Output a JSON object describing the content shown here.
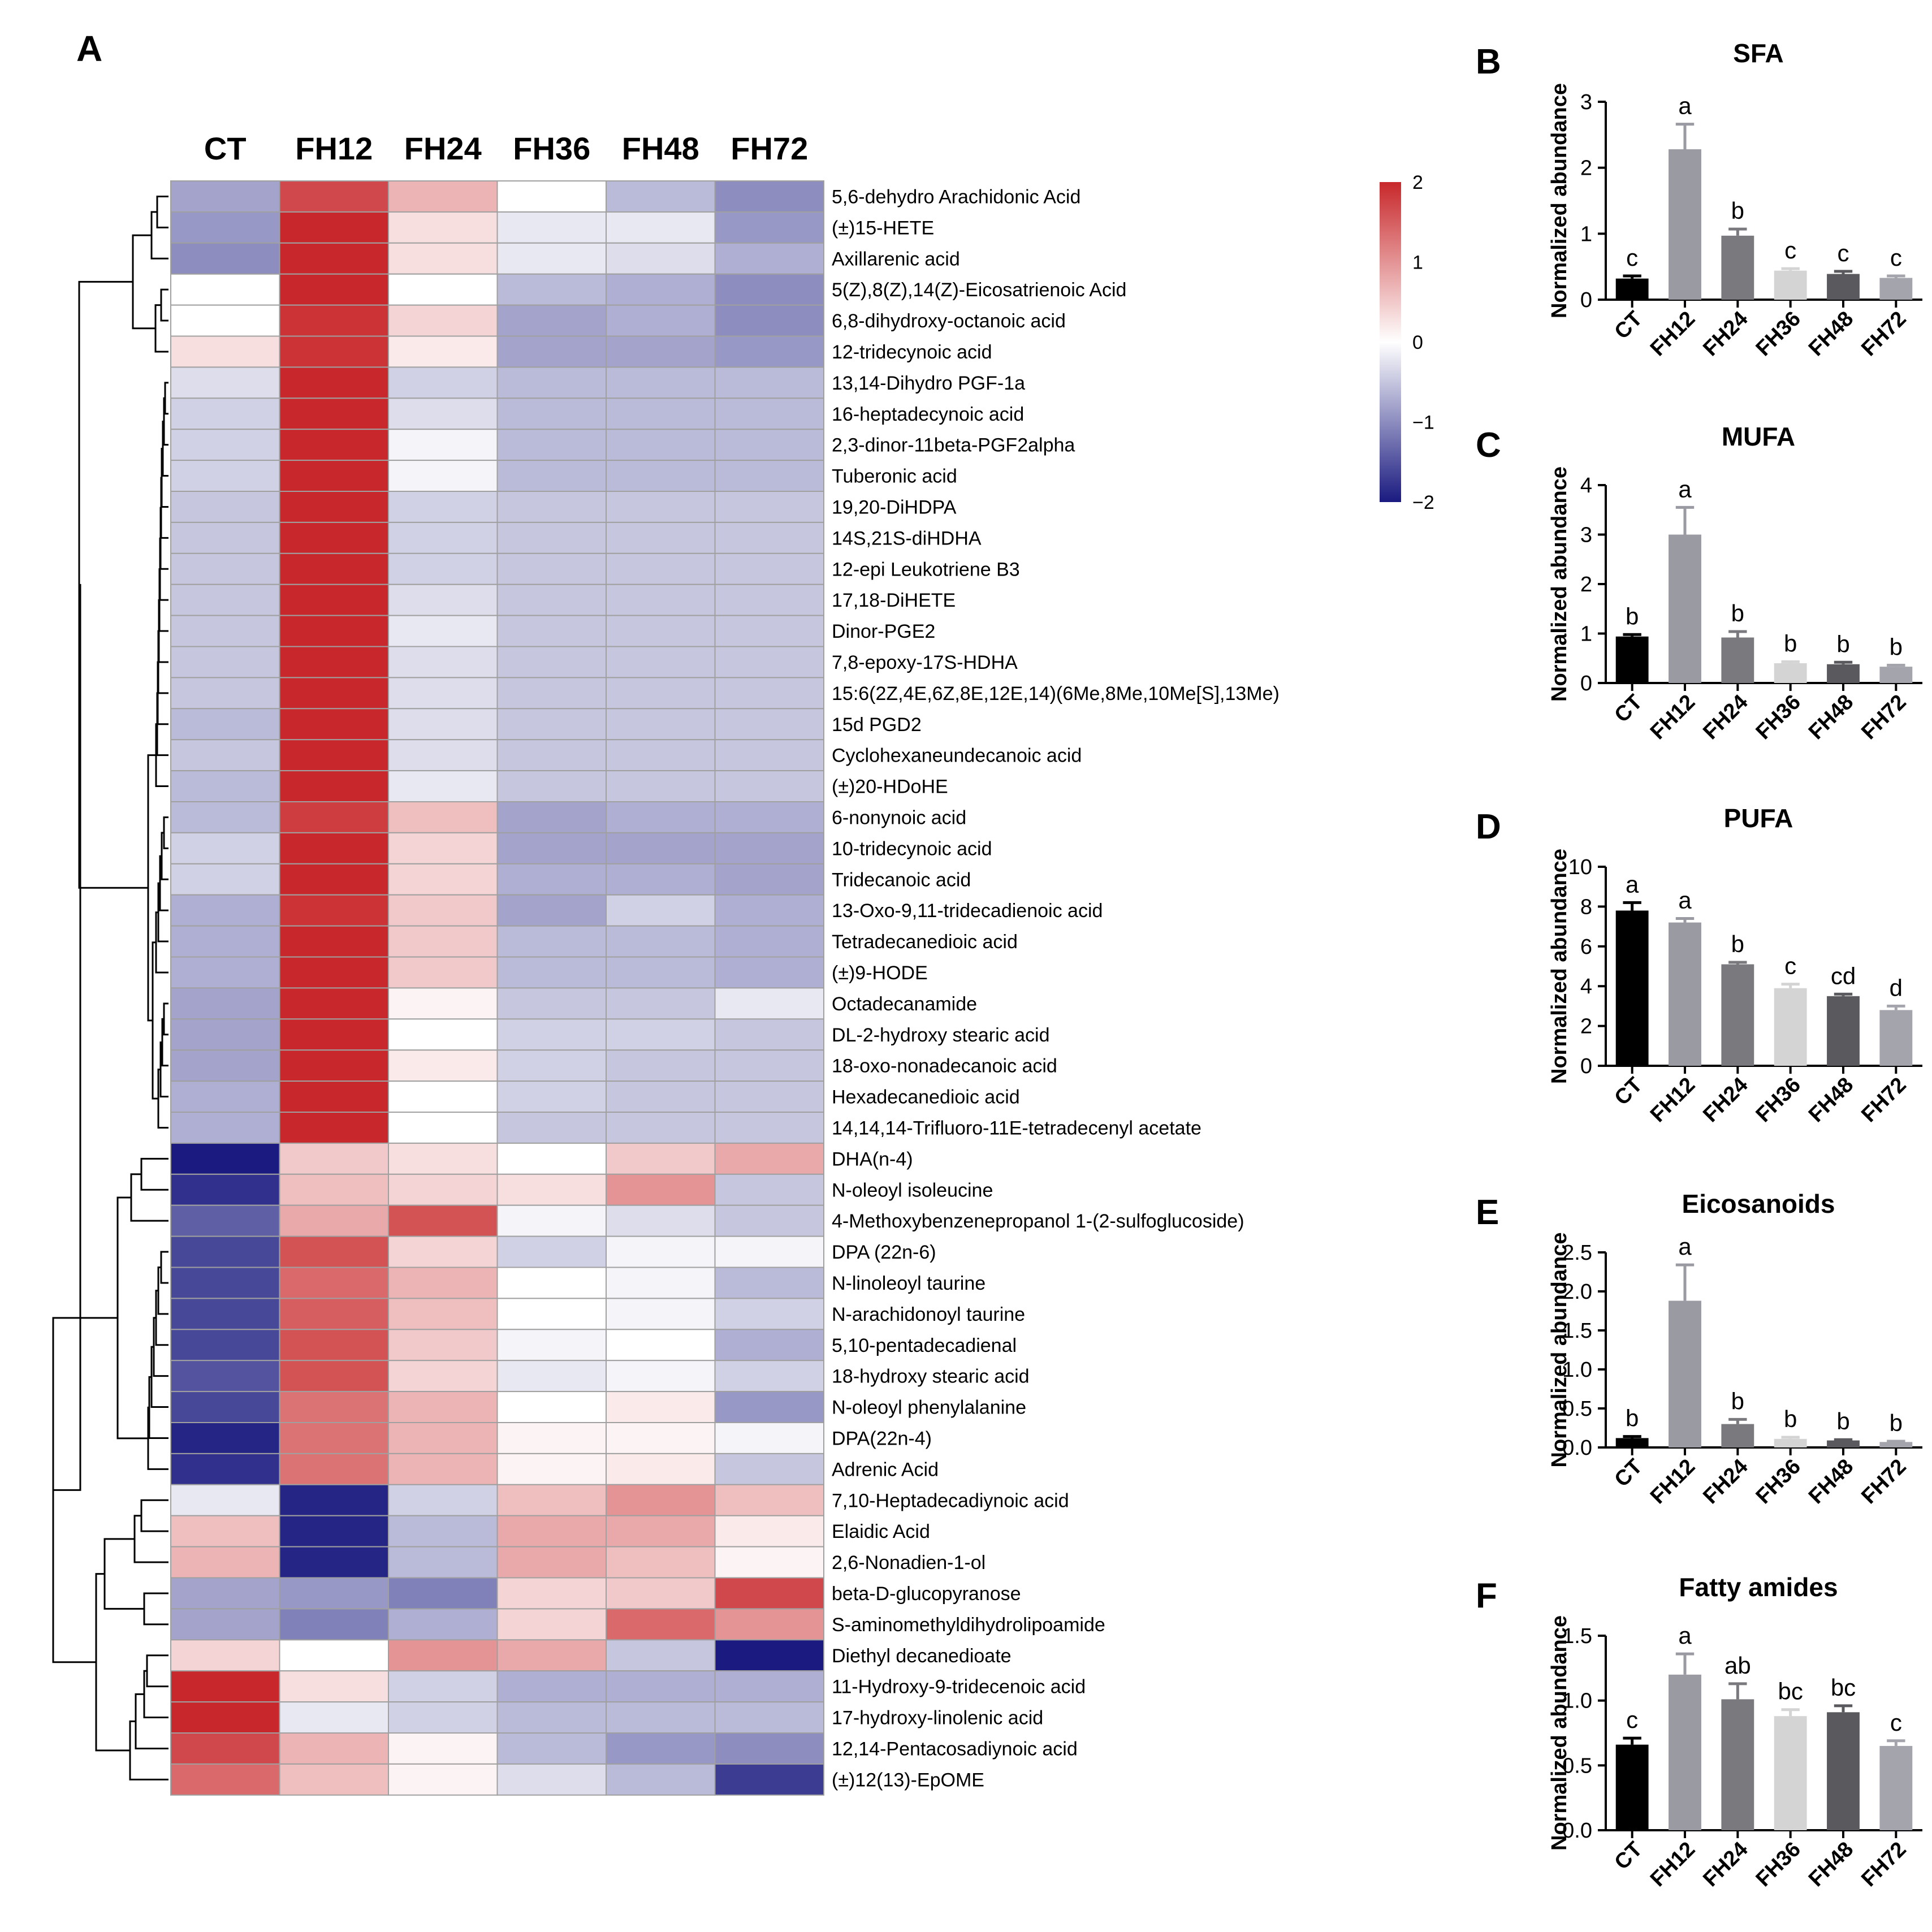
{
  "colors": {
    "high": "#c8282b",
    "mid": "#ffffff",
    "low": "#1a1a80",
    "grid": "#a0a0a0"
  },
  "chart_data": [
    {
      "panel": "A",
      "type": "heatmap",
      "columns": [
        "CT",
        "FH12",
        "FH24",
        "FH36",
        "FH48",
        "FH72"
      ],
      "rows": [
        "5,6-dehydro Arachidonic Acid",
        "(±)15-HETE",
        "Axillarenic acid",
        "5(Z),8(Z),14(Z)-Eicosatrienoic Acid",
        "6,8-dihydroxy-octanoic acid",
        "12-tridecynoic acid",
        "13,14-Dihydro PGF-1a",
        "16-heptadecynoic acid",
        "2,3-dinor-11beta-PGF2alpha",
        "Tuberonic acid",
        "19,20-DiHDPA",
        "14S,21S-diHDHA",
        "12-epi Leukotriene B3",
        "17,18-DiHETE",
        "Dinor-PGE2",
        "7,8-epoxy-17S-HDHA",
        "15:6(2Z,4E,6Z,8E,12E,14)(6Me,8Me,10Me[S],13Me)",
        "15d PGD2",
        "Cyclohexaneundecanoic acid",
        "(±)20-HDoHE",
        "6-nonynoic acid",
        "10-tridecynoic acid",
        "Tridecanoic acid",
        "13-Oxo-9,11-tridecadienoic acid",
        "Tetradecanedioic acid",
        "(±)9-HODE",
        "Octadecanamide",
        "DL-2-hydroxy stearic acid",
        "18-oxo-nonadecanoic acid",
        "Hexadecanedioic acid",
        "14,14,14-Trifluoro-11E-tetradecenyl acetate",
        "DHA(n-4)",
        "N-oleoyl isoleucine",
        "4-Methoxybenzenepropanol 1-(2-sulfoglucoside)",
        "DPA (22n-6)",
        "N-linoleoyl taurine",
        "N-arachidonoyl taurine",
        "5,10-pentadecadienal",
        "18-hydroxy stearic acid",
        "N-oleoyl phenylalanine",
        "DPA(22n-4)",
        "Adrenic Acid",
        "7,10-Heptadecadiynoic acid",
        "Elaidic Acid",
        "2,6-Nonadien-1-ol",
        "beta-D-glucopyranose",
        "S-aminomethyldihydrolipoamide",
        "Diethyl decanedioate",
        "11-Hydroxy-9-tridecenoic acid",
        "17-hydroxy-linolenic acid",
        "12,14-Pentacosadiynoic acid",
        "(±)12(13)-EpOME"
      ],
      "values": [
        [
          -0.8,
          1.7,
          0.7,
          0.0,
          -0.6,
          -1.0
        ],
        [
          -0.9,
          2.0,
          0.3,
          -0.2,
          -0.2,
          -0.9
        ],
        [
          -1.0,
          2.0,
          0.3,
          -0.2,
          -0.3,
          -0.7
        ],
        [
          0.0,
          2.0,
          0.0,
          -0.6,
          -0.7,
          -1.0
        ],
        [
          0.0,
          1.9,
          0.4,
          -0.8,
          -0.7,
          -1.0
        ],
        [
          0.3,
          1.9,
          0.2,
          -0.8,
          -0.8,
          -0.9
        ],
        [
          -0.3,
          2.0,
          -0.4,
          -0.6,
          -0.6,
          -0.6
        ],
        [
          -0.4,
          2.0,
          -0.3,
          -0.6,
          -0.6,
          -0.6
        ],
        [
          -0.4,
          2.0,
          -0.1,
          -0.6,
          -0.6,
          -0.6
        ],
        [
          -0.4,
          2.0,
          -0.1,
          -0.6,
          -0.6,
          -0.6
        ],
        [
          -0.5,
          2.0,
          -0.4,
          -0.5,
          -0.5,
          -0.5
        ],
        [
          -0.5,
          2.0,
          -0.4,
          -0.5,
          -0.5,
          -0.5
        ],
        [
          -0.5,
          2.0,
          -0.4,
          -0.5,
          -0.5,
          -0.5
        ],
        [
          -0.5,
          2.0,
          -0.3,
          -0.5,
          -0.5,
          -0.5
        ],
        [
          -0.5,
          2.0,
          -0.2,
          -0.5,
          -0.5,
          -0.5
        ],
        [
          -0.5,
          2.0,
          -0.3,
          -0.5,
          -0.5,
          -0.5
        ],
        [
          -0.5,
          2.0,
          -0.3,
          -0.5,
          -0.5,
          -0.5
        ],
        [
          -0.6,
          2.0,
          -0.3,
          -0.5,
          -0.5,
          -0.5
        ],
        [
          -0.5,
          2.0,
          -0.3,
          -0.5,
          -0.5,
          -0.5
        ],
        [
          -0.6,
          2.0,
          -0.2,
          -0.5,
          -0.5,
          -0.5
        ],
        [
          -0.6,
          1.8,
          0.6,
          -0.8,
          -0.7,
          -0.7
        ],
        [
          -0.4,
          2.0,
          0.4,
          -0.8,
          -0.8,
          -0.8
        ],
        [
          -0.4,
          2.0,
          0.4,
          -0.7,
          -0.7,
          -0.8
        ],
        [
          -0.7,
          1.9,
          0.5,
          -0.8,
          -0.4,
          -0.7
        ],
        [
          -0.7,
          2.0,
          0.5,
          -0.6,
          -0.6,
          -0.7
        ],
        [
          -0.7,
          2.0,
          0.5,
          -0.6,
          -0.6,
          -0.7
        ],
        [
          -0.8,
          2.0,
          0.1,
          -0.5,
          -0.5,
          -0.2
        ],
        [
          -0.8,
          2.0,
          0.0,
          -0.4,
          -0.4,
          -0.5
        ],
        [
          -0.8,
          2.0,
          0.2,
          -0.4,
          -0.5,
          -0.5
        ],
        [
          -0.7,
          2.0,
          0.0,
          -0.4,
          -0.5,
          -0.5
        ],
        [
          -0.7,
          2.0,
          0.0,
          -0.5,
          -0.5,
          -0.5
        ],
        [
          -2.0,
          0.5,
          0.3,
          0.0,
          0.5,
          0.8
        ],
        [
          -1.8,
          0.6,
          0.4,
          0.3,
          1.0,
          -0.5
        ],
        [
          -1.4,
          0.8,
          1.6,
          -0.1,
          -0.3,
          -0.5
        ],
        [
          -1.6,
          1.6,
          0.4,
          -0.4,
          -0.1,
          -0.1
        ],
        [
          -1.6,
          1.4,
          0.7,
          0.0,
          -0.1,
          -0.6
        ],
        [
          -1.6,
          1.5,
          0.6,
          0.0,
          -0.1,
          -0.4
        ],
        [
          -1.6,
          1.6,
          0.5,
          -0.1,
          -0.0,
          -0.7
        ],
        [
          -1.5,
          1.6,
          0.4,
          -0.2,
          -0.1,
          -0.4
        ],
        [
          -1.6,
          1.3,
          0.7,
          0.0,
          0.2,
          -0.9
        ],
        [
          -1.9,
          1.3,
          0.7,
          0.1,
          0.1,
          -0.1
        ],
        [
          -1.8,
          1.3,
          0.7,
          0.1,
          0.2,
          -0.5
        ],
        [
          -0.2,
          -1.9,
          -0.4,
          0.6,
          1.0,
          0.6
        ],
        [
          0.6,
          -1.9,
          -0.6,
          0.8,
          0.8,
          0.2
        ],
        [
          0.7,
          -1.9,
          -0.6,
          0.8,
          0.6,
          0.1
        ],
        [
          -0.8,
          -0.9,
          -1.1,
          0.4,
          0.5,
          1.7
        ],
        [
          -0.8,
          -1.1,
          -0.7,
          0.4,
          1.4,
          1.0
        ],
        [
          0.4,
          0.0,
          1.0,
          0.8,
          -0.5,
          -2.0
        ],
        [
          2.0,
          0.3,
          -0.4,
          -0.7,
          -0.7,
          -0.7
        ],
        [
          2.0,
          -0.2,
          -0.4,
          -0.6,
          -0.6,
          -0.6
        ],
        [
          1.7,
          0.7,
          0.1,
          -0.6,
          -0.9,
          -1.0
        ],
        [
          1.4,
          0.6,
          0.1,
          -0.3,
          -0.6,
          -1.7
        ]
      ],
      "legend": {
        "ticks": [
          "2",
          "1",
          "0",
          "−1",
          "−2"
        ],
        "range": [
          -2,
          2
        ]
      }
    },
    {
      "panel": "B",
      "type": "bar",
      "title": "SFA",
      "ylabel": "Normalized abundance",
      "categories": [
        "CT",
        "FH12",
        "FH24",
        "FH36",
        "FH48",
        "FH72"
      ],
      "values": [
        0.32,
        2.28,
        0.97,
        0.44,
        0.39,
        0.33
      ],
      "errors": [
        0.04,
        0.38,
        0.1,
        0.03,
        0.04,
        0.03
      ],
      "letters": [
        "c",
        "a",
        "b",
        "c",
        "c",
        "c"
      ],
      "ylim": [
        0,
        3
      ],
      "yticks": [
        "0",
        "1",
        "2",
        "3"
      ],
      "tickvals": [
        0,
        1,
        2,
        3
      ]
    },
    {
      "panel": "C",
      "type": "bar",
      "title": "MUFA",
      "ylabel": "Normalized abundance",
      "categories": [
        "CT",
        "FH12",
        "FH24",
        "FH36",
        "FH48",
        "FH72"
      ],
      "values": [
        0.94,
        3.0,
        0.92,
        0.4,
        0.38,
        0.33
      ],
      "errors": [
        0.04,
        0.55,
        0.12,
        0.03,
        0.04,
        0.03
      ],
      "letters": [
        "b",
        "a",
        "b",
        "b",
        "b",
        "b"
      ],
      "ylim": [
        0,
        4
      ],
      "yticks": [
        "0",
        "1",
        "2",
        "3",
        "4"
      ],
      "tickvals": [
        0,
        1,
        2,
        3,
        4
      ]
    },
    {
      "panel": "D",
      "type": "bar",
      "title": "PUFA",
      "ylabel": "Normalized abundance",
      "categories": [
        "CT",
        "FH12",
        "FH24",
        "FH36",
        "FH48",
        "FH72"
      ],
      "values": [
        7.8,
        7.2,
        5.1,
        3.9,
        3.5,
        2.8
      ],
      "errors": [
        0.4,
        0.2,
        0.1,
        0.2,
        0.1,
        0.2
      ],
      "letters": [
        "a",
        "a",
        "b",
        "c",
        "cd",
        "d"
      ],
      "ylim": [
        0,
        10
      ],
      "yticks": [
        "0",
        "2",
        "4",
        "6",
        "8",
        "10"
      ],
      "tickvals": [
        0,
        2,
        4,
        6,
        8,
        10
      ]
    },
    {
      "panel": "E",
      "type": "bar",
      "title": "Eicosanoids",
      "ylabel": "Normalized abundance",
      "categories": [
        "CT",
        "FH12",
        "FH24",
        "FH36",
        "FH48",
        "FH72"
      ],
      "values": [
        0.12,
        1.88,
        0.3,
        0.11,
        0.09,
        0.07
      ],
      "errors": [
        0.02,
        0.46,
        0.06,
        0.02,
        0.01,
        0.01
      ],
      "letters": [
        "b",
        "a",
        "b",
        "b",
        "b",
        "b"
      ],
      "ylim": [
        0,
        2.5
      ],
      "yticks": [
        "0.0",
        "0.5",
        "1.0",
        "1.5",
        "2.0",
        "2.5"
      ],
      "tickvals": [
        0,
        0.5,
        1,
        1.5,
        2,
        2.5
      ]
    },
    {
      "panel": "F",
      "type": "bar",
      "title": "Fatty amides",
      "ylabel": "Normalized abundance",
      "categories": [
        "CT",
        "FH12",
        "FH24",
        "FH36",
        "FH48",
        "FH72"
      ],
      "values": [
        0.66,
        1.2,
        1.01,
        0.88,
        0.91,
        0.65
      ],
      "errors": [
        0.05,
        0.16,
        0.12,
        0.05,
        0.05,
        0.04
      ],
      "letters": [
        "c",
        "a",
        "ab",
        "bc",
        "bc",
        "c"
      ],
      "ylim": [
        0,
        1.5
      ],
      "yticks": [
        "0.0",
        "0.5",
        "1.0",
        "1.5"
      ],
      "tickvals": [
        0,
        0.5,
        1,
        1.5
      ]
    }
  ],
  "bar_colors": [
    "#000000",
    "#9a9aa2",
    "#7a7a7e",
    "#d4d4d4",
    "#5a5a5e",
    "#a4a4ac"
  ]
}
